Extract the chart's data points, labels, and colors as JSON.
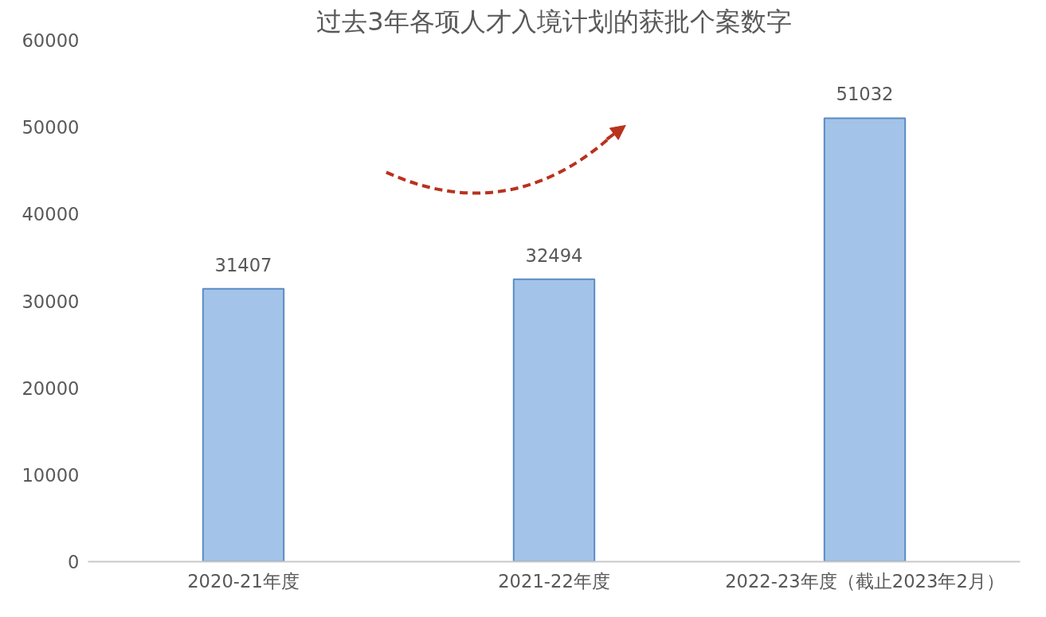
{
  "chart_data": {
    "type": "bar",
    "title": "过去3年各项人才入境计划的获批个案数字",
    "categories": [
      "2020-21年度",
      "2021-22年度",
      "2022-23年度（截止2023年2月）"
    ],
    "values": [
      31407,
      32494,
      51032
    ],
    "color": "#a3c3e8",
    "ylim": [
      0,
      60000
    ],
    "yticks": [
      0,
      10000,
      20000,
      30000,
      40000,
      50000,
      60000
    ],
    "grid": false,
    "data_labels": true
  }
}
